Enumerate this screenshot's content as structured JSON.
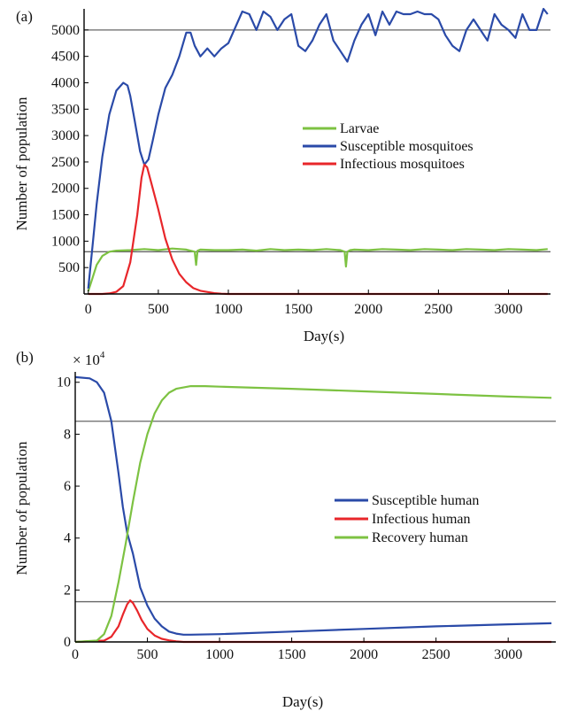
{
  "chart_data": [
    {
      "panel_label": "(a)",
      "type": "line",
      "xlabel": "Day(s)",
      "ylabel": "Number of population",
      "xlim": [
        -30,
        3300
      ],
      "ylim": [
        0,
        5400
      ],
      "xticks": [
        0,
        500,
        1000,
        1500,
        2000,
        2500,
        3000
      ],
      "yticks": [
        500,
        1000,
        1500,
        2000,
        2500,
        3000,
        3500,
        4000,
        4500,
        5000
      ],
      "reference_lines_y": [
        5000,
        800
      ],
      "legend_position": "center-right",
      "series": [
        {
          "name": "Larvae",
          "color": "#7dc242",
          "x": [
            0,
            30,
            60,
            100,
            150,
            200,
            300,
            400,
            500,
            600,
            700,
            760,
            770,
            780,
            800,
            900,
            1000,
            1100,
            1200,
            1300,
            1400,
            1500,
            1600,
            1700,
            1800,
            1830,
            1840,
            1850,
            1870,
            1900,
            2000,
            2100,
            2200,
            2300,
            2400,
            2500,
            2600,
            2700,
            2800,
            2900,
            3000,
            3100,
            3200,
            3280
          ],
          "values": [
            50,
            300,
            550,
            720,
            800,
            820,
            830,
            850,
            830,
            860,
            840,
            800,
            550,
            820,
            840,
            830,
            830,
            840,
            820,
            850,
            830,
            840,
            830,
            850,
            830,
            800,
            520,
            800,
            830,
            840,
            830,
            850,
            840,
            830,
            850,
            840,
            830,
            850,
            840,
            830,
            850,
            840,
            830,
            850
          ]
        },
        {
          "name": "Susceptible mosquitoes",
          "color": "#2a4aa8",
          "x": [
            0,
            30,
            60,
            100,
            150,
            200,
            250,
            280,
            300,
            330,
            370,
            400,
            430,
            460,
            500,
            550,
            600,
            650,
            700,
            730,
            760,
            800,
            850,
            900,
            950,
            1000,
            1050,
            1100,
            1150,
            1200,
            1250,
            1300,
            1350,
            1400,
            1450,
            1500,
            1550,
            1600,
            1650,
            1700,
            1750,
            1800,
            1850,
            1900,
            1950,
            2000,
            2050,
            2100,
            2150,
            2200,
            2250,
            2300,
            2350,
            2400,
            2450,
            2500,
            2550,
            2600,
            2650,
            2700,
            2750,
            2800,
            2850,
            2900,
            2950,
            3000,
            3050,
            3100,
            3150,
            3200,
            3250,
            3280
          ],
          "values": [
            100,
            900,
            1700,
            2600,
            3400,
            3850,
            4000,
            3950,
            3750,
            3300,
            2700,
            2450,
            2550,
            2900,
            3400,
            3900,
            4150,
            4500,
            4950,
            4950,
            4700,
            4500,
            4650,
            4500,
            4650,
            4750,
            5050,
            5350,
            5300,
            5000,
            5350,
            5250,
            5000,
            5200,
            5300,
            4700,
            4600,
            4800,
            5100,
            5300,
            4800,
            4600,
            4400,
            4800,
            5100,
            5300,
            4900,
            5350,
            5100,
            5350,
            5300,
            5300,
            5350,
            5300,
            5300,
            5200,
            4900,
            4700,
            4600,
            5000,
            5200,
            5000,
            4800,
            5300,
            5100,
            5000,
            4850,
            5300,
            5000,
            5000,
            5400,
            5300
          ]
        },
        {
          "name": "Infectious mosquitoes",
          "color": "#e8262a",
          "x": [
            0,
            100,
            150,
            200,
            250,
            300,
            350,
            380,
            400,
            420,
            450,
            500,
            550,
            600,
            650,
            700,
            750,
            800,
            900,
            950,
            1000,
            3280
          ],
          "values": [
            0,
            0,
            10,
            40,
            150,
            600,
            1500,
            2200,
            2450,
            2400,
            2100,
            1600,
            1050,
            650,
            380,
            220,
            110,
            60,
            15,
            5,
            0,
            0
          ]
        }
      ]
    },
    {
      "panel_label": "(b)",
      "type": "line",
      "xlabel": "Day(s)",
      "ylabel": "Number of population",
      "y_multiplier": "× 10",
      "y_multiplier_exp": "4",
      "xlim": [
        0,
        3330
      ],
      "ylim": [
        0,
        10.4
      ],
      "xticks": [
        0,
        500,
        1000,
        1500,
        2000,
        2500,
        3000
      ],
      "yticks": [
        0,
        2,
        4,
        6,
        8,
        10
      ],
      "reference_lines_y": [
        8.5,
        1.55
      ],
      "legend_position": "center-right",
      "series": [
        {
          "name": "Susceptible human",
          "color": "#2a4aa8",
          "x": [
            0,
            100,
            150,
            200,
            250,
            300,
            330,
            360,
            400,
            450,
            500,
            550,
            600,
            650,
            700,
            750,
            800,
            1000,
            1500,
            2000,
            2500,
            3000,
            3300
          ],
          "values": [
            10.2,
            10.15,
            10.0,
            9.6,
            8.5,
            6.5,
            5.2,
            4.2,
            3.4,
            2.1,
            1.4,
            0.9,
            0.6,
            0.4,
            0.32,
            0.28,
            0.28,
            0.3,
            0.4,
            0.5,
            0.6,
            0.68,
            0.72
          ]
        },
        {
          "name": "Infectious human",
          "color": "#e8262a",
          "x": [
            0,
            200,
            250,
            300,
            330,
            360,
            380,
            400,
            430,
            460,
            500,
            550,
            600,
            650,
            700,
            750,
            3300
          ],
          "values": [
            0,
            0.05,
            0.2,
            0.6,
            1.05,
            1.45,
            1.6,
            1.5,
            1.2,
            0.85,
            0.5,
            0.25,
            0.12,
            0.06,
            0.02,
            0,
            0
          ]
        },
        {
          "name": "Recovery human",
          "color": "#7dc242",
          "x": [
            0,
            150,
            200,
            250,
            300,
            350,
            400,
            450,
            500,
            550,
            600,
            650,
            700,
            800,
            900,
            1000,
            1500,
            2000,
            2500,
            3000,
            3300
          ],
          "values": [
            0,
            0.05,
            0.3,
            1.0,
            2.3,
            3.8,
            5.4,
            6.9,
            8.0,
            8.8,
            9.3,
            9.6,
            9.75,
            9.85,
            9.85,
            9.83,
            9.75,
            9.65,
            9.55,
            9.45,
            9.4
          ]
        }
      ]
    }
  ]
}
